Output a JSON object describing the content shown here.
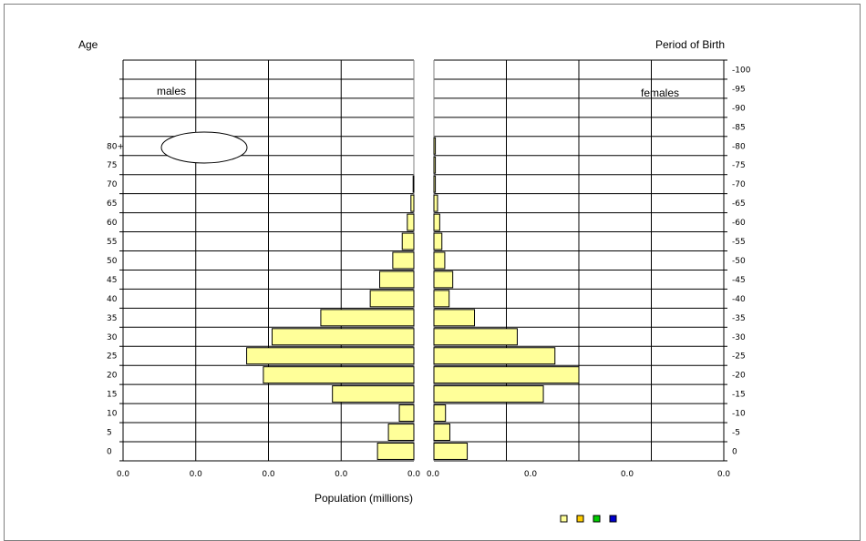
{
  "chart_data": {
    "type": "bar",
    "subtype": "population-pyramid",
    "y_left_label": "Age",
    "y_right_label": "Period of Birth",
    "x_label": "Population (millions)",
    "left_panel_label": "males",
    "right_panel_label": "females",
    "age_ticks": [
      "0",
      "5",
      "10",
      "15",
      "20",
      "25",
      "30",
      "35",
      "40",
      "45",
      "50",
      "55",
      "60",
      "65",
      "70",
      "75",
      "80+",
      "",
      "",
      "",
      ""
    ],
    "period_ticks": [
      "0",
      "-5",
      "-10",
      "-15",
      "-20",
      "-25",
      "-30",
      "-35",
      "-40",
      "-45",
      "-50",
      "-55",
      "-60",
      "-65",
      "-70",
      "-75",
      "-80",
      "-85",
      "-90",
      "-95",
      "-100"
    ],
    "male_x_ticks": [
      "0.0",
      "0.0",
      "0.0",
      "0.0",
      "0.0"
    ],
    "female_x_ticks": [
      "0.0",
      "0.0",
      "0.0",
      "0.0"
    ],
    "x_max": 4.0,
    "x_tick_step": 1.0,
    "grid": true,
    "series": [
      {
        "name": "males",
        "values": [
          0.5,
          0.35,
          0.2,
          1.12,
          2.07,
          2.3,
          1.95,
          1.28,
          0.6,
          0.47,
          0.29,
          0.16,
          0.09,
          0.04,
          0.01,
          0.0,
          0.0,
          0.0,
          0.0,
          0.0,
          0.0
        ]
      },
      {
        "name": "females",
        "values": [
          0.46,
          0.22,
          0.16,
          1.51,
          2.0,
          1.67,
          1.15,
          0.56,
          0.21,
          0.26,
          0.15,
          0.11,
          0.08,
          0.05,
          0.02,
          0.02,
          0.02,
          0.0,
          0.0,
          0.0,
          0.0
        ]
      }
    ],
    "bar_color": "#ffff99",
    "bar_stroke": "#000000",
    "legend_swatches": [
      "#ffff99",
      "#ffcc00",
      "#00cc00",
      "#0000cc"
    ]
  }
}
